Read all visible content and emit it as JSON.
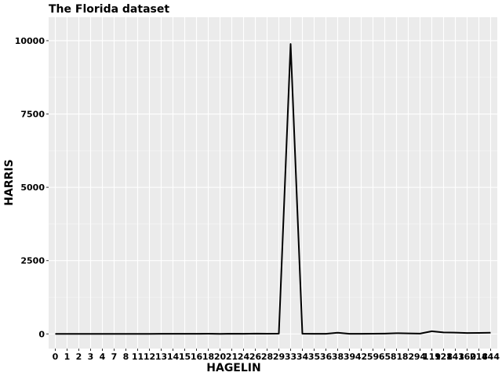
{
  "chart_data": {
    "type": "line",
    "title": "The Florida dataset",
    "xlabel": "HAGELIN",
    "ylabel": "HARRIS",
    "categories": [
      "0",
      "1",
      "2",
      "3",
      "4",
      "7",
      "8",
      "11",
      "12",
      "13",
      "14",
      "15",
      "16",
      "18",
      "20",
      "21",
      "24",
      "26",
      "28",
      "29",
      "33",
      "34",
      "35",
      "36",
      "38",
      "39",
      "42",
      "59",
      "65",
      "81",
      "82",
      "94",
      "119",
      "128",
      "143",
      "160",
      "218",
      "444"
    ],
    "series": [
      {
        "values": [
          0,
          0,
          0,
          0,
          0,
          0,
          0,
          0,
          2,
          4,
          3,
          5,
          4,
          6,
          2,
          8,
          5,
          10,
          6,
          12,
          9888,
          6,
          4,
          4,
          40,
          5,
          3,
          6,
          12,
          25,
          18,
          10,
          90,
          50,
          45,
          30,
          35,
          40
        ]
      }
    ],
    "ylim": [
      -500,
      10800
    ],
    "yticks": [
      0,
      2500,
      5000,
      7500,
      10000
    ],
    "grid": true,
    "legend": "none",
    "colors": {
      "panel": "#ebebeb",
      "grid": "#ffffff",
      "line": "#000000"
    }
  }
}
